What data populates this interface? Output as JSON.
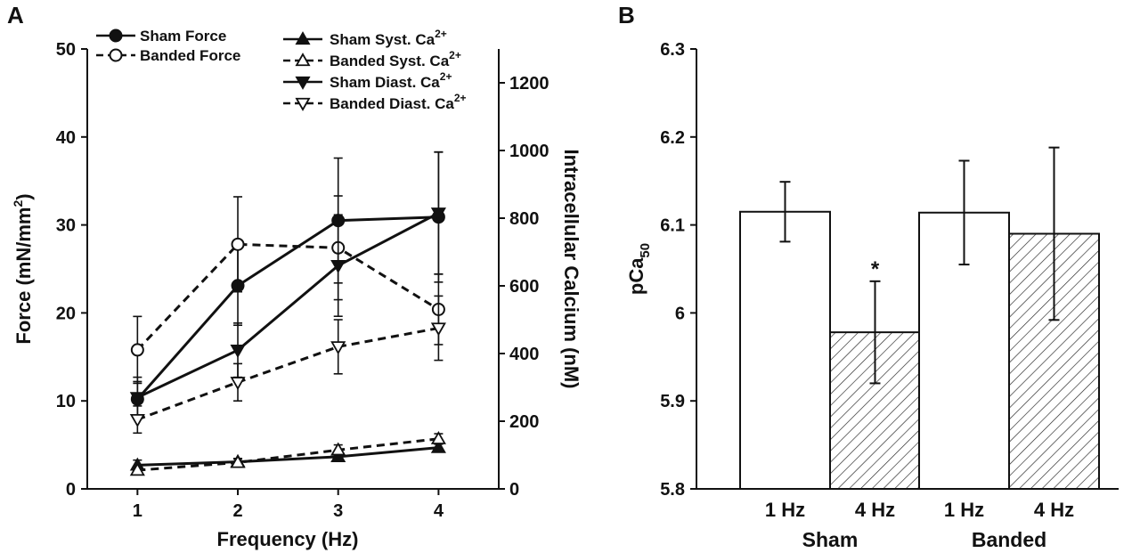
{
  "panels": {
    "a_label": "A",
    "b_label": "B"
  },
  "chart_data": [
    {
      "id": "A",
      "type": "line",
      "xlabel": "Frequency (Hz)",
      "ylabel": "Force (mN/mm",
      "ylabel_sup": "2",
      "ylabel_close": ")",
      "y2label": "Intracellular Calcium (nM)",
      "x": [
        1,
        2,
        3,
        4
      ],
      "x_ticks": [
        "1",
        "2",
        "3",
        "4"
      ],
      "xlim": [
        0.5,
        4.6
      ],
      "ylim": [
        0,
        50
      ],
      "y_ticks": [
        "0",
        "10",
        "20",
        "30",
        "40",
        "50"
      ],
      "y2lim": [
        0,
        1300
      ],
      "y2_ticks": [
        "0",
        "200",
        "400",
        "600",
        "800",
        "1000",
        "1200"
      ],
      "series": [
        {
          "name": "Sham Force",
          "axis": "left",
          "marker": "filled-circle",
          "line": "solid",
          "values": [
            10.2,
            23.1,
            30.5,
            30.9
          ],
          "errors": [
            2.0,
            4.5,
            7.1,
            7.4
          ]
        },
        {
          "name": "Banded Force",
          "axis": "left",
          "marker": "open-circle",
          "line": "dashed",
          "values": [
            15.8,
            27.8,
            27.4,
            20.4
          ],
          "errors": [
            3.8,
            5.4,
            5.9,
            4.0
          ]
        },
        {
          "name": "Sham Syst. Ca",
          "name_sup": "2+",
          "axis": "right",
          "marker": "filled-triangle-up",
          "line": "solid",
          "values": [
            70,
            80,
            95,
            122
          ],
          "errors": [
            15,
            10,
            10,
            10
          ]
        },
        {
          "name": "Banded Syst. Ca",
          "name_sup": "2+",
          "axis": "right",
          "marker": "open-triangle-up",
          "line": "dashed",
          "values": [
            55,
            78,
            115,
            148
          ],
          "errors": [
            10,
            10,
            15,
            15
          ]
        },
        {
          "name": "Sham Diast. Ca",
          "name_sup": "2+",
          "axis": "right",
          "marker": "filled-triangle-down",
          "line": "solid",
          "values": [
            270,
            410,
            660,
            815
          ],
          "errors": [
            60,
            80,
            150,
            180
          ]
        },
        {
          "name": "Banded Diast. Ca",
          "name_sup": "2+",
          "axis": "right",
          "marker": "open-triangle-down",
          "line": "dashed",
          "values": [
            205,
            315,
            420,
            475
          ],
          "errors": [
            40,
            55,
            80,
            95
          ]
        }
      ]
    },
    {
      "id": "B",
      "type": "bar",
      "ylabel": "pCa",
      "ylabel_sub": "50",
      "ylim": [
        5.8,
        6.3
      ],
      "y_ticks": [
        "5.8",
        "5.9",
        "6",
        "6.1",
        "6.2",
        "6.3"
      ],
      "groups": [
        "Sham",
        "Banded"
      ],
      "categories": [
        "1 Hz",
        "4 Hz",
        "1 Hz",
        "4 Hz"
      ],
      "values": [
        6.115,
        5.978,
        6.114,
        6.09
      ],
      "errors": [
        0.034,
        0.058,
        0.059,
        0.098
      ],
      "fill": [
        "open",
        "hatched",
        "open",
        "hatched"
      ],
      "annotations": [
        {
          "bar_index": 1,
          "text": "*"
        }
      ]
    }
  ]
}
